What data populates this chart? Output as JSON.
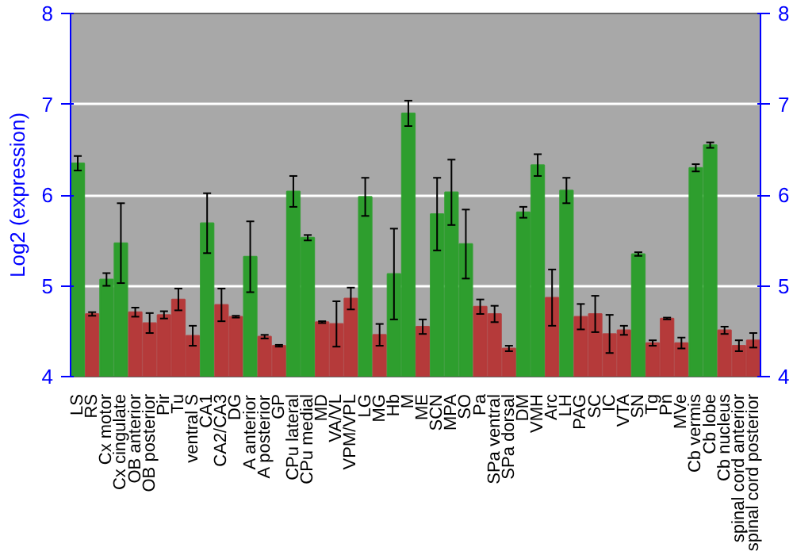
{
  "chart_data": {
    "type": "bar",
    "ylabel": "Log2 (expression)",
    "categories": [
      "LS",
      "RS",
      "Cx motor",
      "Cx cingulate",
      "OB anterior",
      "OB posterior",
      "Pir",
      "Tu",
      "ventral S",
      "CA1",
      "CA2/CA3",
      "DG",
      "A anterior",
      "A posterior",
      "GP",
      "CPu lateral",
      "CPu medial",
      "MD",
      "VA/VL",
      "VPM/VPL",
      "LG",
      "MG",
      "Hb",
      "M",
      "ME",
      "SCN",
      "MPA",
      "SO",
      "Pa",
      "SPa ventral",
      "SPa dorsal",
      "DM",
      "VMH",
      "Arc",
      "LH",
      "PAG",
      "SC",
      "IC",
      "VTA",
      "SN",
      "Tg",
      "Pn",
      "MVe",
      "Cb vermis",
      "Cb lobe",
      "Cb nucleus",
      "spinal cord anterior",
      "spinal cord posterior"
    ],
    "values": [
      6.35,
      4.69,
      5.07,
      5.47,
      4.71,
      4.59,
      4.68,
      4.85,
      4.45,
      5.69,
      4.79,
      4.66,
      5.32,
      4.44,
      4.34,
      6.04,
      5.53,
      4.6,
      4.58,
      4.86,
      5.98,
      4.46,
      5.13,
      6.9,
      4.55,
      5.79,
      6.03,
      5.46,
      4.77,
      4.69,
      4.31,
      5.81,
      6.33,
      4.87,
      6.05,
      4.66,
      4.69,
      4.47,
      4.51,
      5.35,
      4.37,
      4.64,
      4.37,
      6.3,
      6.55,
      4.51,
      4.34,
      4.4
    ],
    "errors": [
      0.08,
      0.02,
      0.07,
      0.44,
      0.05,
      0.11,
      0.04,
      0.12,
      0.11,
      0.33,
      0.18,
      0.01,
      0.39,
      0.02,
      0.01,
      0.17,
      0.03,
      0.01,
      0.25,
      0.12,
      0.21,
      0.12,
      0.5,
      0.14,
      0.08,
      0.4,
      0.36,
      0.38,
      0.08,
      0.09,
      0.03,
      0.06,
      0.12,
      0.31,
      0.14,
      0.14,
      0.2,
      0.21,
      0.05,
      0.02,
      0.03,
      0.01,
      0.06,
      0.04,
      0.03,
      0.04,
      0.06,
      0.08
    ],
    "colors": [
      "#2e9e2e",
      "#b53a3a",
      "#2e9e2e",
      "#2e9e2e",
      "#b53a3a",
      "#b53a3a",
      "#b53a3a",
      "#b53a3a",
      "#b53a3a",
      "#2e9e2e",
      "#b53a3a",
      "#b53a3a",
      "#2e9e2e",
      "#b53a3a",
      "#b53a3a",
      "#2e9e2e",
      "#2e9e2e",
      "#b53a3a",
      "#b53a3a",
      "#b53a3a",
      "#2e9e2e",
      "#b53a3a",
      "#2e9e2e",
      "#2e9e2e",
      "#b53a3a",
      "#2e9e2e",
      "#2e9e2e",
      "#2e9e2e",
      "#b53a3a",
      "#b53a3a",
      "#b53a3a",
      "#2e9e2e",
      "#2e9e2e",
      "#b53a3a",
      "#2e9e2e",
      "#b53a3a",
      "#b53a3a",
      "#b53a3a",
      "#b53a3a",
      "#2e9e2e",
      "#b53a3a",
      "#b53a3a",
      "#b53a3a",
      "#2e9e2e",
      "#2e9e2e",
      "#b53a3a",
      "#b53a3a",
      "#b53a3a"
    ],
    "ylim": [
      4,
      8
    ],
    "yticks": [
      4,
      5,
      6,
      7,
      8
    ],
    "y2lim": [
      4,
      8
    ],
    "y2ticks": [
      4,
      5,
      6,
      7,
      8
    ],
    "grid": "y"
  }
}
